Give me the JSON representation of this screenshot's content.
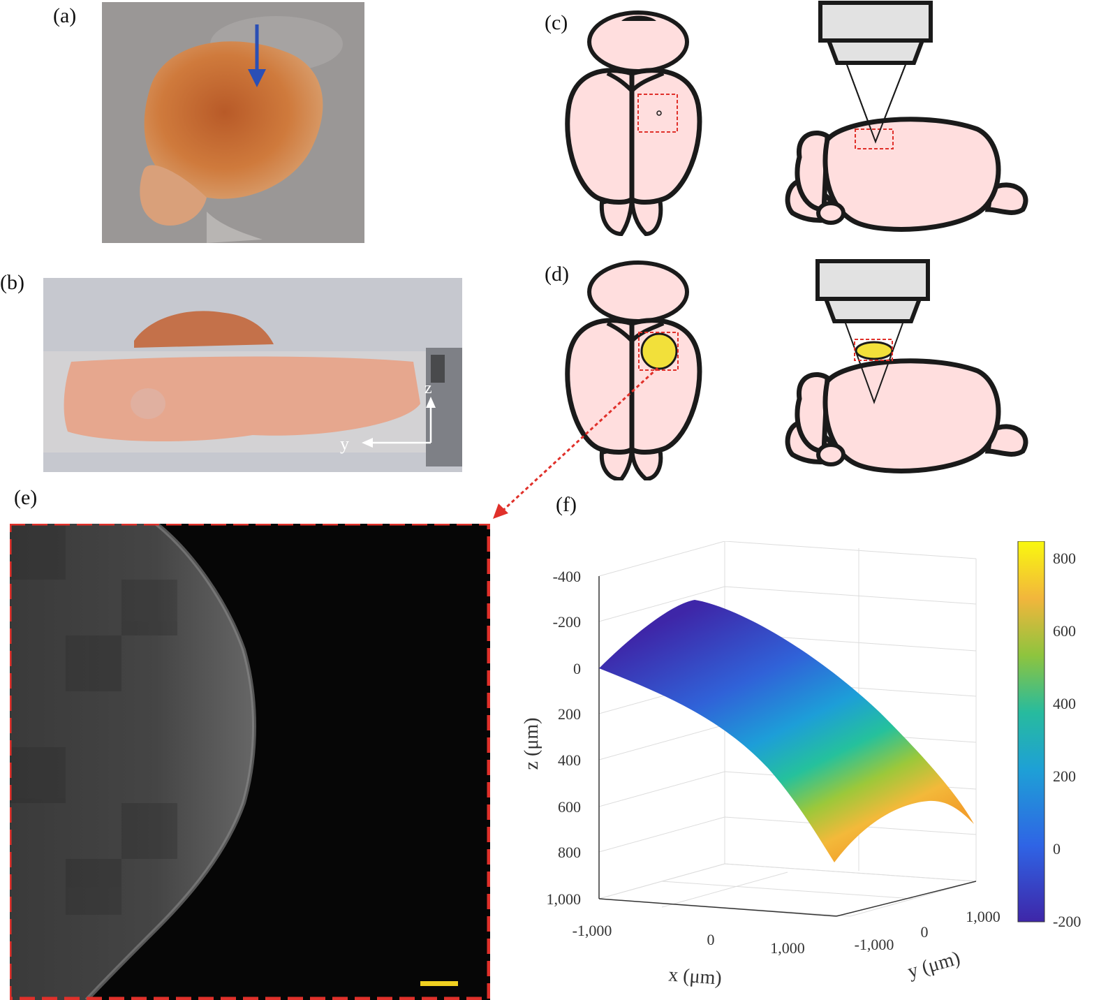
{
  "panels": {
    "a": "(a)",
    "b": "(b)",
    "c": "(c)",
    "d": "(d)",
    "e": "(e)",
    "f": "(f)"
  },
  "panel_b": {
    "axis_z": "z",
    "axis_y": "y"
  },
  "colors": {
    "brain_fill": "#ffdede",
    "outline": "#1a1a1a",
    "roi_dashed": "#e0302a",
    "focus_yellow": "#f2e03a",
    "scale_bar": "#f0d020",
    "arrow_blue": "#2a4fb5"
  },
  "chart_data": {
    "type": "surface",
    "zlabel": "z (μm)",
    "xlabel": "x (μm)",
    "ylabel": "y (μm)",
    "z_ticks": [
      "-400",
      "-200",
      "0",
      "200",
      "400",
      "600",
      "800",
      "1,000"
    ],
    "x_ticks": [
      "-1,000",
      "0",
      "1,000"
    ],
    "y_ticks": [
      "-1,000",
      "0",
      "1,000"
    ],
    "zlim": [
      -400,
      1000
    ],
    "xlim": [
      -1000,
      1000
    ],
    "ylim": [
      -1000,
      1000
    ],
    "colorbar": {
      "ticks": [
        "800",
        "600",
        "400",
        "200",
        "0",
        "-200"
      ],
      "range": [
        -200,
        850
      ],
      "colormap": "parula"
    },
    "surface": {
      "corners_z": [
        {
          "x": -1000,
          "y": -1000,
          "z": 0
        },
        {
          "x": 0,
          "y": 0,
          "z": -200
        },
        {
          "x": 1000,
          "y": -1000,
          "z": 850
        },
        {
          "x": 1000,
          "y": 1000,
          "z": 600
        }
      ]
    },
    "grid": true
  }
}
